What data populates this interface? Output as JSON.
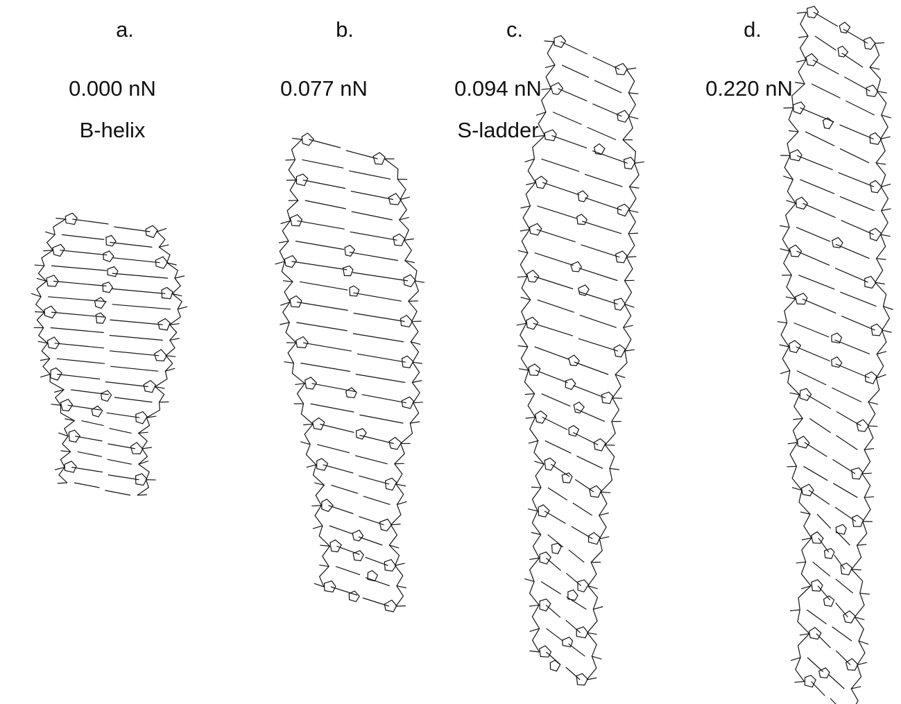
{
  "panels": [
    {
      "label": "a.",
      "force": "0.000 nN",
      "form": "B-helix"
    },
    {
      "label": "b.",
      "force": "0.077 nN"
    },
    {
      "label": "c.",
      "force": "0.094 nN",
      "form": "S-ladder"
    },
    {
      "label": "d.",
      "force": "0.220 nN"
    }
  ]
}
